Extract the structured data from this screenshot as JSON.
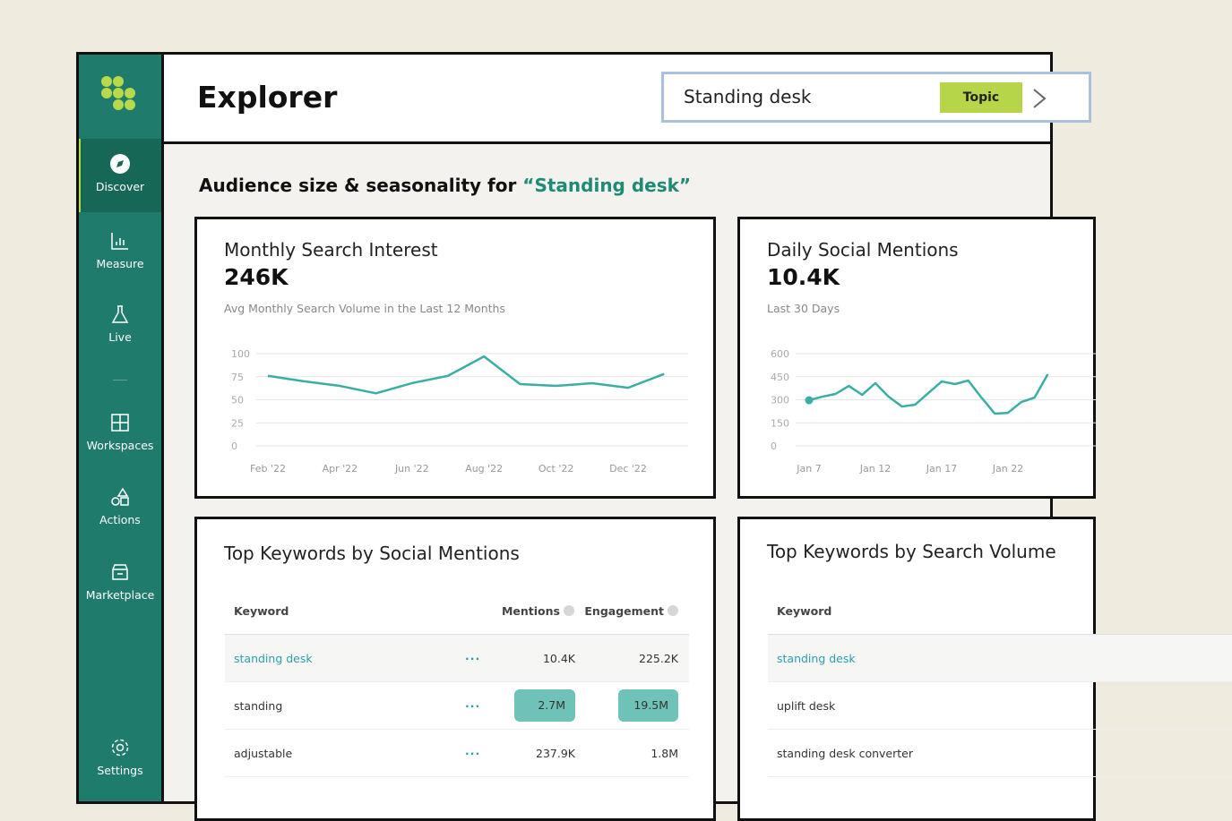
{
  "sidebar": {
    "items": [
      "Discover",
      "Measure",
      "Live",
      "Workspaces",
      "Actions",
      "Marketplace",
      "Settings"
    ]
  },
  "header": {
    "title": "Explorer",
    "search": "Standing desk",
    "badge": "Topic"
  },
  "section": {
    "heading": "Audience size & seasonality for",
    "topic": "“Standing desk”"
  },
  "cards": [
    {
      "title": "Monthly Search Interest",
      "value": "246K",
      "subtitle": "Avg Monthly Search Volume in the Last 12 Months",
      "chart": {
        "type": "line",
        "color": "#3aaea3",
        "categories": [
          "Feb '22",
          null,
          "Apr '22",
          null,
          "Jun '22",
          null,
          "Aug '22",
          null,
          "Oct '22",
          null,
          "Dec '22",
          null
        ],
        "values": [
          76,
          70,
          65,
          57,
          68,
          76,
          97,
          67,
          65,
          68,
          63,
          78
        ],
        "ylim": [
          0,
          100
        ],
        "yticks": [
          0,
          25,
          50,
          75,
          100
        ],
        "grid": true
      }
    },
    {
      "title": "Daily Social Mentions",
      "value": "10.4K",
      "subtitle": "Last 30 Days",
      "chart": {
        "type": "line",
        "color": "#3aaea3",
        "start_marker": true,
        "categories": [
          "Jan 7",
          null,
          null,
          null,
          null,
          "Jan 12",
          null,
          null,
          null,
          null,
          "Jan 17",
          null,
          null,
          null,
          null,
          "Jan 22",
          null,
          null,
          null
        ],
        "values": [
          297,
          320,
          338,
          390,
          332,
          408,
          320,
          256,
          268,
          344,
          419,
          402,
          425,
          314,
          210,
          215,
          285,
          314,
          466
        ],
        "ylim": [
          0,
          600
        ],
        "yticks": [
          0,
          150,
          300,
          450,
          600
        ],
        "grid": true
      }
    }
  ],
  "tables": [
    {
      "title": "Top Keywords by Social Mentions",
      "columns": [
        "Keyword",
        "Mentions",
        "Engagement"
      ],
      "rows": [
        [
          "standing desk",
          "10.4K",
          "225.2K"
        ],
        [
          "standing",
          "2.7M",
          "19.5M"
        ],
        [
          "adjustable",
          "237.9K",
          "1.8M"
        ]
      ]
    },
    {
      "title": "Top Keywords by Search Volume",
      "columns": [
        "Keyword"
      ],
      "rows": [
        [
          "standing desk"
        ],
        [
          "uplift desk"
        ],
        [
          "standing desk converter"
        ]
      ]
    }
  ]
}
